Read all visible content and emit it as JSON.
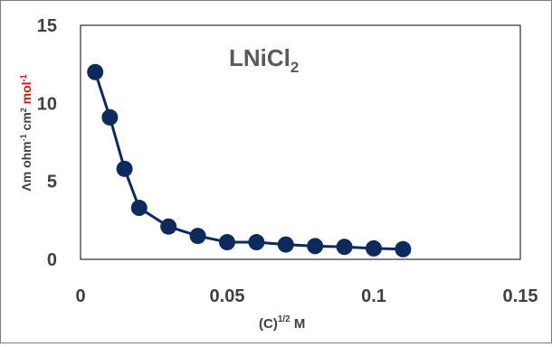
{
  "chart_data": {
    "type": "line",
    "title": "LNiCl",
    "title_subscript": "2",
    "xlabel": "(C)",
    "xlabel_superscript": "1/2",
    "xlabel_unit": " M",
    "ylabel_parts": [
      {
        "text": "Λm ohm",
        "color": "#404040"
      },
      {
        "text": "-1",
        "sup": true,
        "color": "#404040"
      },
      {
        "text": " cm",
        "color": "#404040"
      },
      {
        "text": "2",
        "sup": true,
        "color": "#404040"
      },
      {
        "text": " mol",
        "color": "#d01010"
      },
      {
        "text": "-1",
        "sup": true,
        "color": "#d01010"
      }
    ],
    "xlim": [
      0,
      0.15
    ],
    "ylim": [
      0,
      15
    ],
    "xticks": [
      0,
      0.05,
      0.1,
      0.15
    ],
    "xtick_labels": [
      "0",
      "0.05",
      "0.1",
      "0.15"
    ],
    "yticks": [
      0,
      5,
      10,
      15
    ],
    "ytick_labels": [
      "0",
      "5",
      "10",
      "15"
    ],
    "grid": false,
    "legend": "none",
    "series": [
      {
        "x": [
          0.005,
          0.01,
          0.015,
          0.02,
          0.03,
          0.04,
          0.05,
          0.06,
          0.07,
          0.08,
          0.09,
          0.1,
          0.11
        ],
        "y": [
          12.0,
          9.1,
          5.8,
          3.3,
          2.1,
          1.5,
          1.1,
          1.1,
          0.95,
          0.85,
          0.8,
          0.7,
          0.65
        ],
        "color": "#0d2a5c",
        "marker": "circle"
      }
    ]
  }
}
